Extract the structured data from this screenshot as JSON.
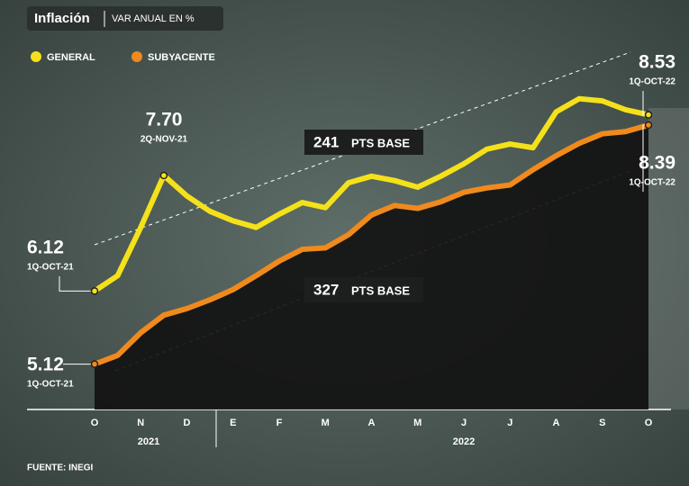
{
  "chart_data": {
    "type": "line",
    "title": "Inflación",
    "subtitle": "VAR ANUAL EN %",
    "source": "FUENTE: INEGI",
    "categories": [
      "O",
      null,
      "N",
      null,
      "D",
      null,
      "E",
      null,
      "F",
      null,
      "M",
      null,
      "A",
      null,
      "M",
      null,
      "J",
      null,
      "J",
      null,
      "A",
      null,
      "S",
      null,
      "O"
    ],
    "year_labels": [
      "2021",
      "2022"
    ],
    "series": [
      {
        "name": "GENERAL",
        "color": "#f5e11a",
        "values": [
          6.12,
          6.33,
          6.99,
          7.7,
          7.42,
          7.21,
          7.08,
          6.99,
          7.17,
          7.33,
          7.26,
          7.6,
          7.69,
          7.63,
          7.54,
          7.69,
          7.86,
          8.06,
          8.13,
          8.08,
          8.57,
          8.75,
          8.72,
          8.6,
          8.53
        ],
        "value_labels": [
          "6.12",
          null,
          null,
          "7.70",
          null,
          null,
          null,
          null,
          null,
          null,
          null,
          null,
          null,
          null,
          null,
          null,
          null,
          null,
          null,
          null,
          null,
          null,
          null,
          null,
          "8.53"
        ],
        "point_dates": [
          "1Q-OCT-21",
          null,
          null,
          "2Q-NOV-21",
          null,
          null,
          null,
          null,
          null,
          null,
          null,
          null,
          null,
          null,
          null,
          null,
          null,
          null,
          null,
          null,
          null,
          null,
          null,
          null,
          "1Q-OCT-22"
        ]
      },
      {
        "name": "SUBYACENTE",
        "color": "#f08a1c",
        "values": [
          5.12,
          5.24,
          5.55,
          5.79,
          5.88,
          6.0,
          6.14,
          6.33,
          6.53,
          6.69,
          6.71,
          6.89,
          7.16,
          7.29,
          7.25,
          7.34,
          7.47,
          7.53,
          7.57,
          7.78,
          7.97,
          8.14,
          8.27,
          8.3,
          8.39
        ],
        "value_labels": [
          "5.12",
          null,
          null,
          null,
          null,
          null,
          null,
          null,
          null,
          null,
          null,
          null,
          null,
          null,
          null,
          null,
          null,
          null,
          null,
          null,
          null,
          null,
          null,
          null,
          "8.39"
        ],
        "point_dates": [
          "1Q-OCT-21",
          null,
          null,
          null,
          null,
          null,
          null,
          null,
          null,
          null,
          null,
          null,
          null,
          null,
          null,
          null,
          null,
          null,
          null,
          null,
          null,
          null,
          null,
          null,
          "1Q-OCT-22"
        ]
      }
    ],
    "annotations": [
      {
        "value": 241,
        "label": "PTS BASE"
      },
      {
        "value": 327,
        "label": "PTS BASE"
      }
    ],
    "ylim": [
      4.5,
      10.1
    ]
  }
}
